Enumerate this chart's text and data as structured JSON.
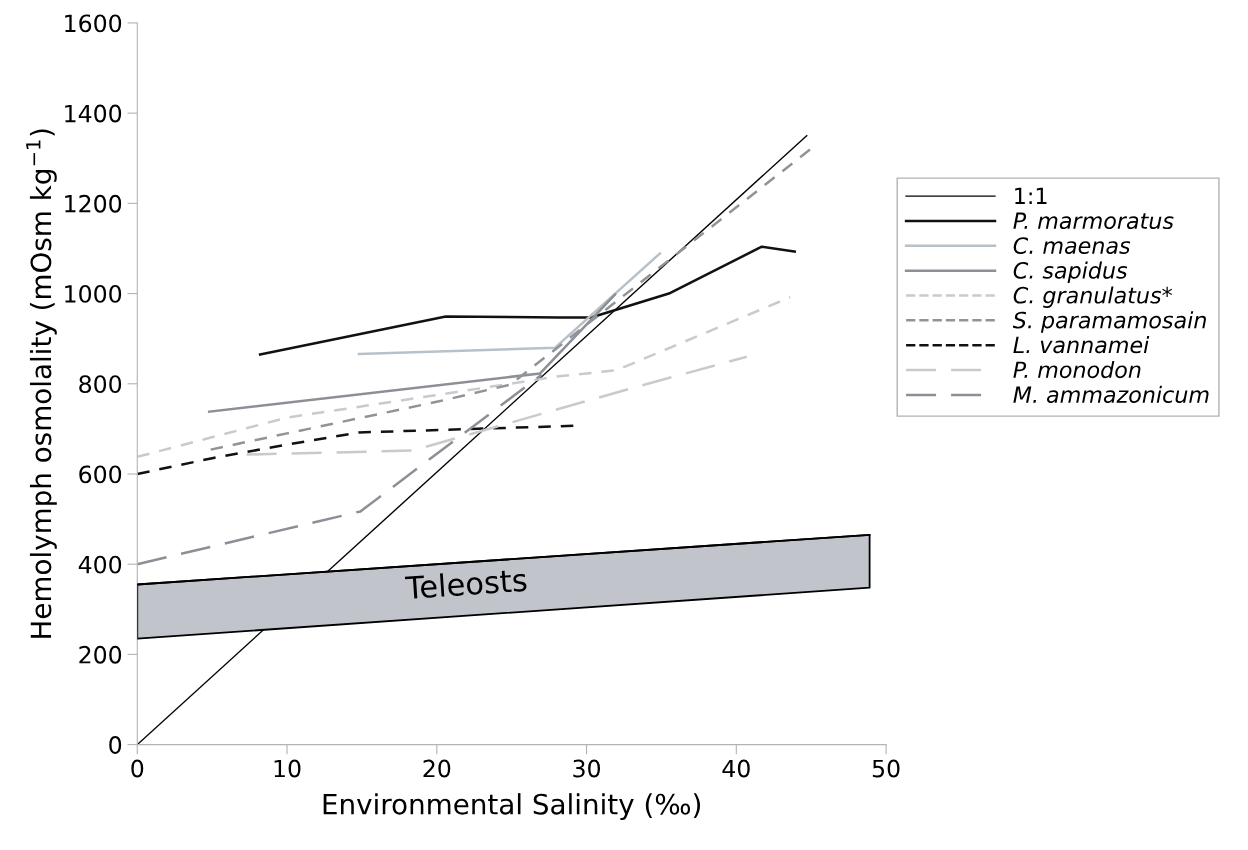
{
  "chart_data": {
    "type": "line",
    "xlabel": "Environmental Salinity (‰)",
    "ylabel": "Hemolymph osmolality (mOsm kg$^{−1}$)",
    "xlim": [
      0,
      50
    ],
    "xticks": [
      0,
      10,
      20,
      30,
      40,
      50
    ],
    "ylim": [
      0,
      1600
    ],
    "yticks": [
      0,
      200,
      400,
      600,
      800,
      1000,
      1200,
      1400,
      1600
    ],
    "grid": false,
    "legend": "right",
    "marker": "none",
    "series": [
      {
        "name": "Teleosts",
        "type": "line",
        "color": "#000000",
        "x": [
          0,
          48.9
        ],
        "values": [
          355,
          465
        ],
        "lower": [
          235,
          348
        ],
        "upper": [
          355,
          465
        ]
      },
      {
        "name": "1:1",
        "color": "#000000",
        "line_style": "solid",
        "x": [
          0,
          44.7
        ],
        "values": [
          0,
          1350
        ]
      },
      {
        "name": "P. marmoratus",
        "color": "#111111",
        "line_style": "solid",
        "x": [
          8.2,
          20.6,
          28.2,
          30.3,
          35.5,
          41.7,
          43.9
        ],
        "values": [
          865,
          949,
          947,
          947,
          1000,
          1104,
          1093
        ]
      },
      {
        "name": "C. maenas",
        "color": "#b8c0c8",
        "line_style": "solid",
        "x": [
          14.8,
          27.9,
          34.9
        ],
        "values": [
          866,
          880,
          1089
        ]
      },
      {
        "name": "C. sapidus",
        "color": "#8c9096",
        "line_style": "solid",
        "x": [
          4.8,
          26.9,
          31.9
        ],
        "values": [
          738,
          823,
          998
        ]
      },
      {
        "name": "C. granulatus*",
        "color": "#c8cacc",
        "line_style": "dashed",
        "x": [
          0,
          10,
          20,
          28,
          32,
          43.6
        ],
        "values": [
          638,
          725,
          775,
          816,
          830,
          992
        ]
      },
      {
        "name": "S. paramamosain",
        "color": "#909498",
        "line_style": "dashed",
        "x": [
          4.9,
          10,
          15,
          20,
          24.9,
          45.1
        ],
        "values": [
          654,
          690,
          725,
          760,
          798,
          1324
        ]
      },
      {
        "name": "L. vannamei",
        "color": "#111111",
        "line_style": "dashed",
        "x": [
          0,
          5,
          10,
          14.8,
          29.3
        ],
        "values": [
          600,
          635,
          665,
          692,
          707
        ]
      },
      {
        "name": "P. monodon",
        "color": "#c8cacc",
        "line_style": "long_dashed",
        "x": [
          7.3,
          18.4,
          33.2,
          40.7
        ],
        "values": [
          643,
          652,
          792,
          860
        ]
      },
      {
        "name": "M. ammazonicum",
        "color": "#8c9096",
        "line_style": "long_dashed",
        "x": [
          0,
          14.9,
          27
        ],
        "values": [
          400,
          517,
          820
        ]
      }
    ]
  }
}
